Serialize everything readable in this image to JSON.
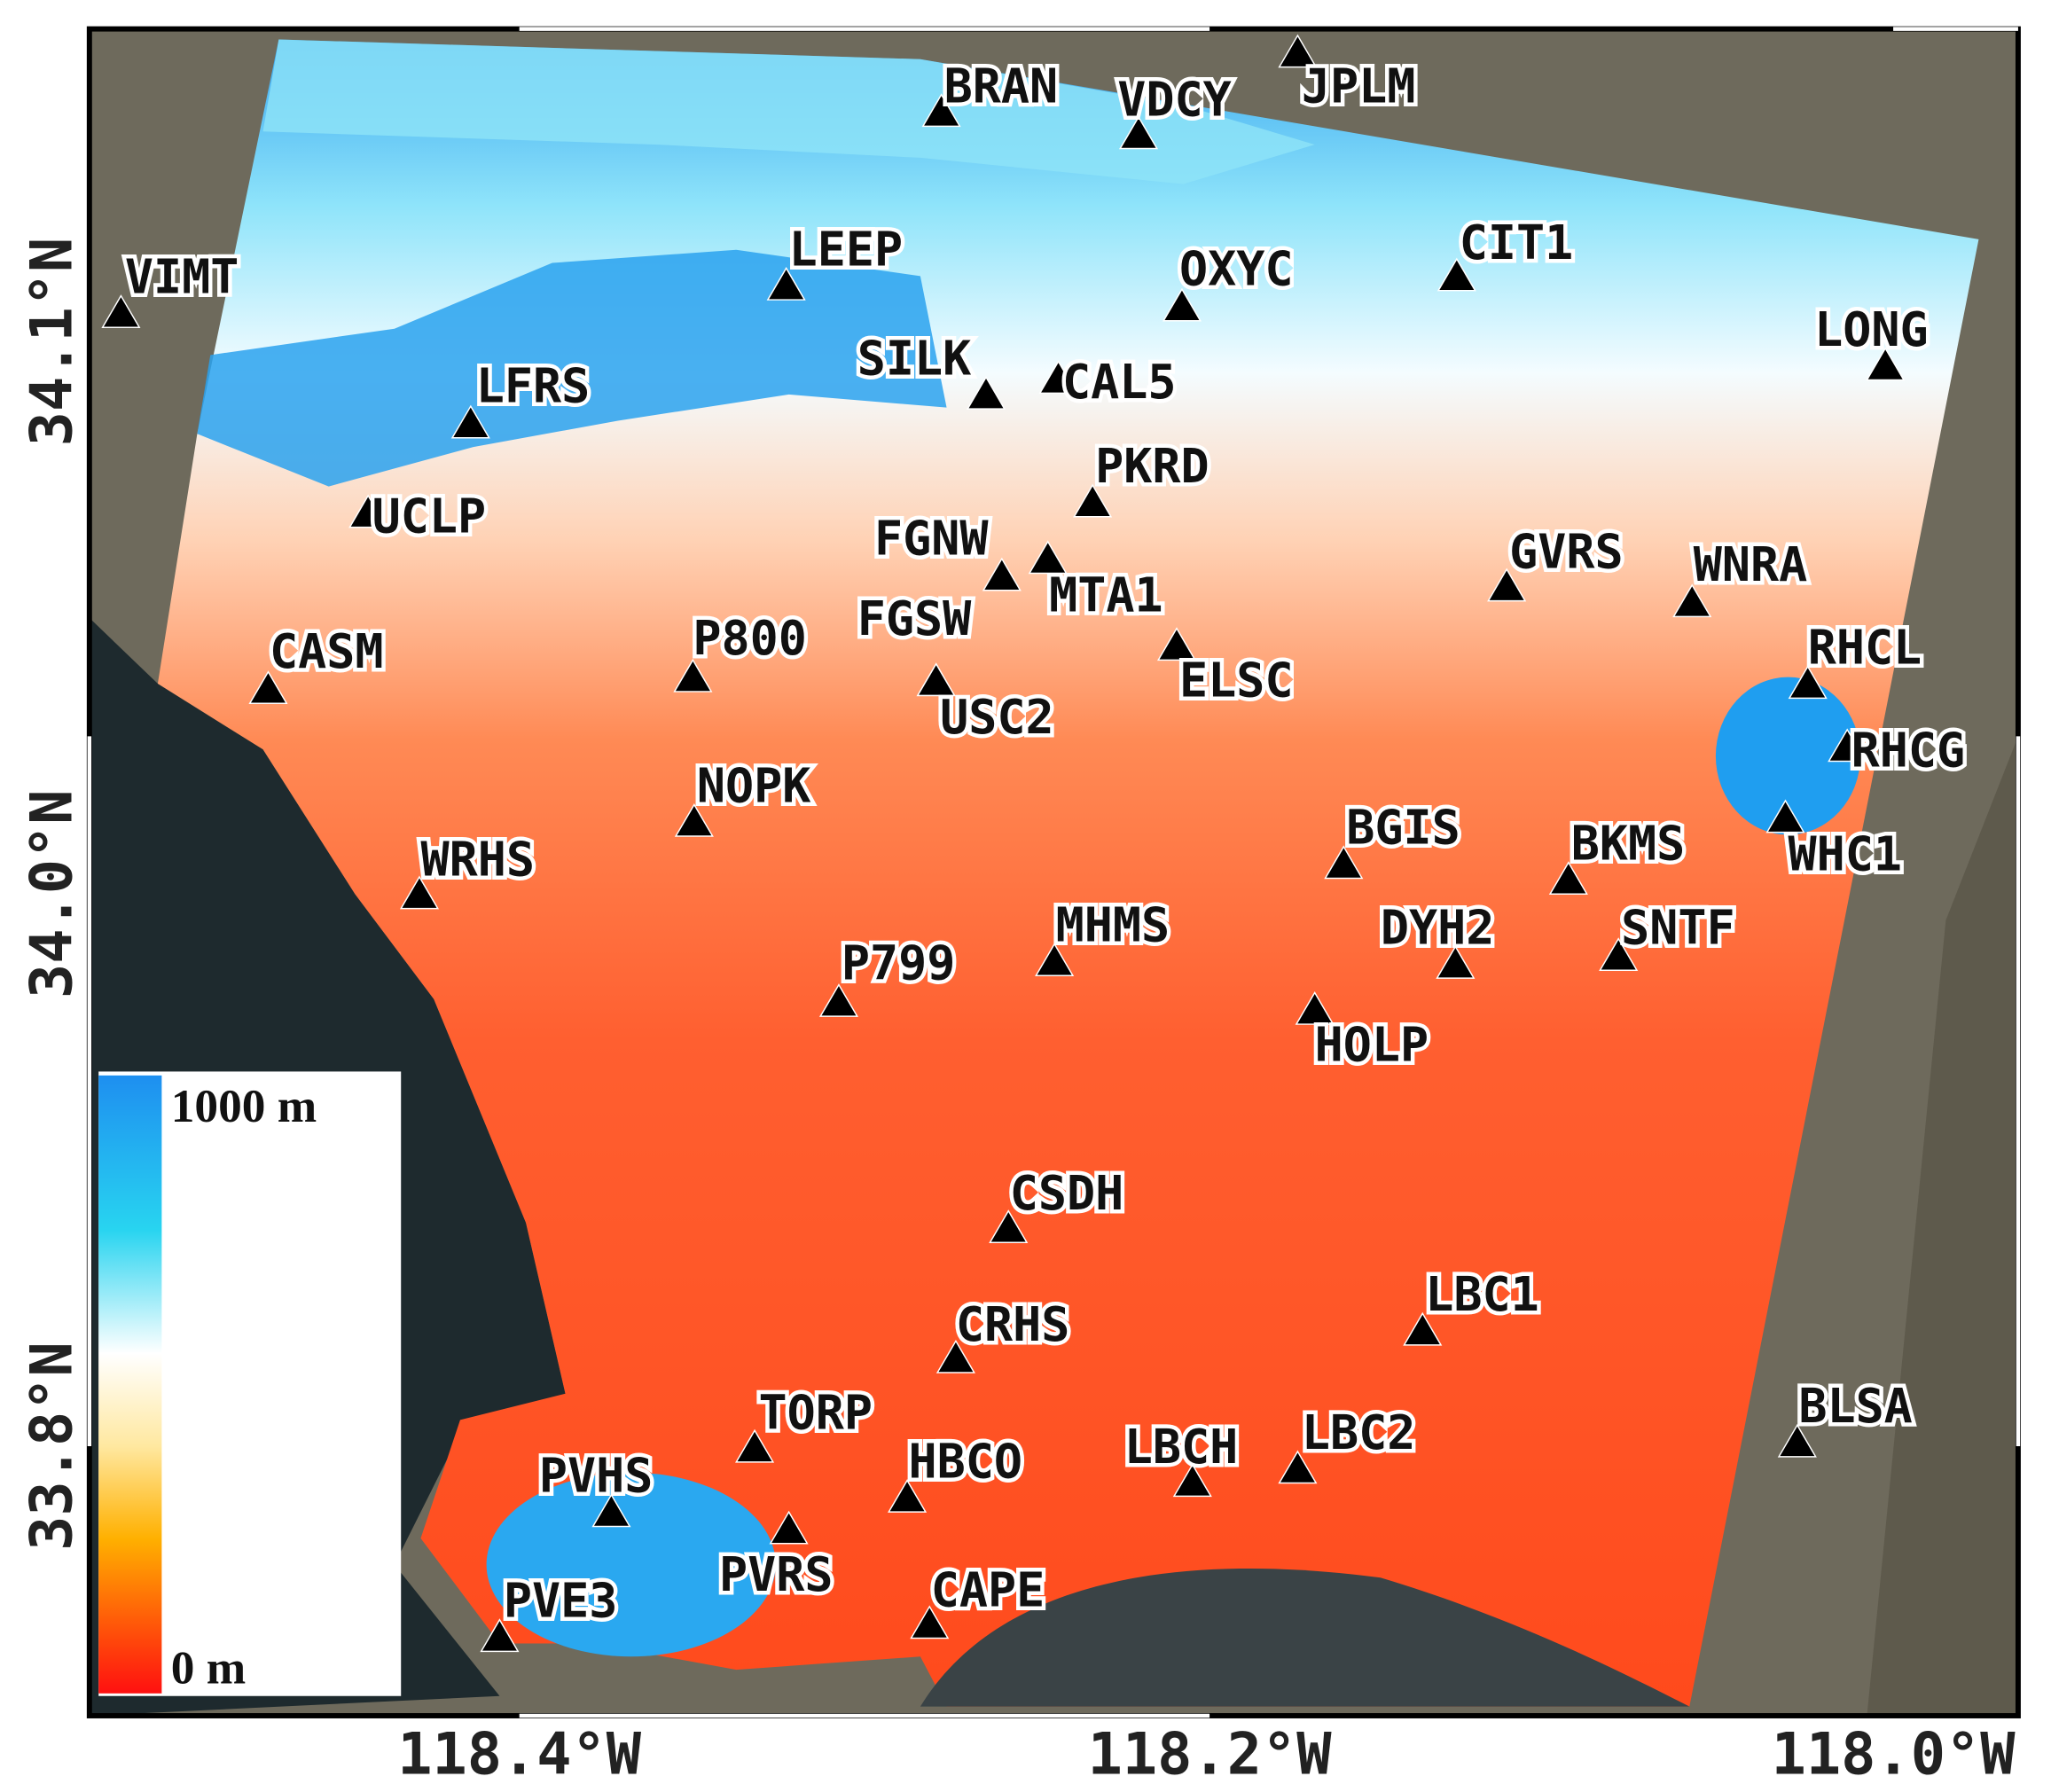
{
  "map": {
    "stations": [
      "VIMT",
      "BRAN",
      "VDCY",
      "JPLM",
      "LEEP",
      "OXYC",
      "CIT1",
      "LONG",
      "SILK",
      "CAL5",
      "LFRS",
      "PKRD",
      "UCLP",
      "FGNW",
      "MTA1",
      "GVRS",
      "WNRA",
      "FGSW",
      "CASM",
      "P800",
      "ELSC",
      "USC2",
      "RHCL",
      "RHCG",
      "NOPK",
      "WHC1",
      "BGIS",
      "BKMS",
      "WRHS",
      "MHMS",
      "DYH2",
      "SNTF",
      "P799",
      "HOLP",
      "CSDH",
      "LBC1",
      "CRHS",
      "BLSA",
      "TORP",
      "HBCO",
      "LBCH",
      "LBC2",
      "PVHS",
      "PVRS",
      "CAPE",
      "PVE3"
    ],
    "lat_labels": [
      "34.1°N",
      "34.0°N",
      "33.8°N"
    ],
    "lon_labels": [
      "118.4°W",
      "118.2°W",
      "118.0°W"
    ],
    "legend": {
      "max_label": "1000 m",
      "min_label": "0 m"
    }
  }
}
